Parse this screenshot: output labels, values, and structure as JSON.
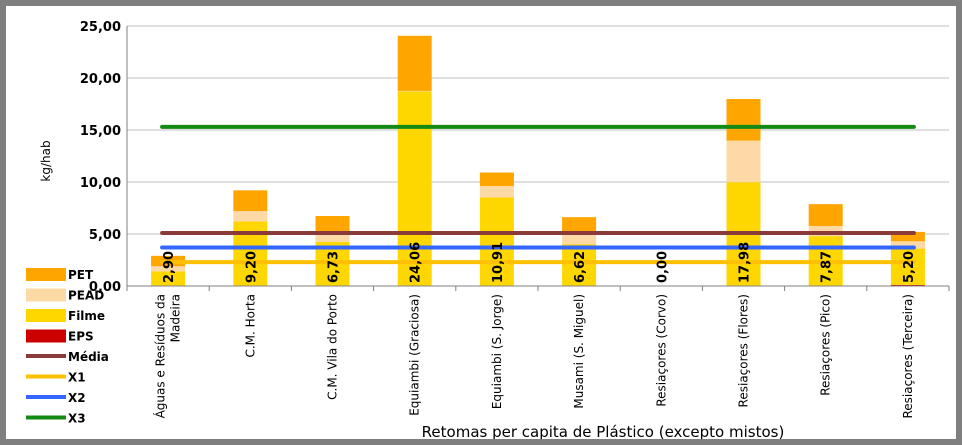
{
  "chart_data": {
    "type": "bar",
    "stacked": true,
    "title": "",
    "xlabel": "Retomas per capita de Plástico  (excepto mistos)",
    "ylabel": "kg/hab",
    "ylim": [
      0,
      25
    ],
    "yticks": [
      "0,00",
      "5,00",
      "10,00",
      "15,00",
      "20,00",
      "25,00"
    ],
    "grid": true,
    "legend_position": "bottom-left",
    "categories": [
      "Águas e Resíduos da Madeira",
      "C.M. Horta",
      "C.M. Vila do Porto",
      "Equiambi (Graciosa)",
      "Equiambi (S. Jorge)",
      "Musami (S. Miguel)",
      "Resiaçores (Corvo)",
      "Resiaçores (Flores)",
      "Resiaçores (Pico)",
      "Resiaçores (Terceira)"
    ],
    "category_lines": [
      [
        "Águas e Resíduos da",
        "Madeira"
      ],
      [
        "C.M. Horta"
      ],
      [
        "C.M. Vila do Porto"
      ],
      [
        "Equiambi (Graciosa)"
      ],
      [
        "Equiambi (S. Jorge)"
      ],
      [
        "Musami (S. Miguel)"
      ],
      [
        "Resiaçores (Corvo)"
      ],
      [
        "Resiaçores (Flores)"
      ],
      [
        "Resiaçores (Pico)"
      ],
      [
        "Resiaçores (Terceira)"
      ]
    ],
    "totals": [
      "2,90",
      "9,20",
      "6,73",
      "24,06",
      "10,91",
      "6,62",
      "0,00",
      "17,98",
      "7,87",
      "5,20"
    ],
    "series": [
      {
        "name": "PET",
        "color": "#ffa500",
        "values": [
          1.0,
          2.0,
          1.5,
          5.3,
          1.3,
          1.6,
          0,
          4.0,
          2.1,
          0.9
        ]
      },
      {
        "name": "PEAD",
        "color": "#fdd9a5",
        "values": [
          0.5,
          1.0,
          1.0,
          0.05,
          1.1,
          1.0,
          0,
          4.0,
          0.97,
          0.7
        ]
      },
      {
        "name": "Filme",
        "color": "#ffd700",
        "values": [
          1.4,
          6.2,
          4.23,
          18.71,
          8.51,
          4.02,
          0,
          9.98,
          4.8,
          3.5
        ]
      },
      {
        "name": "EPS",
        "color": "#cc0000",
        "values": [
          0,
          0,
          0,
          0,
          0,
          0,
          0,
          0,
          0,
          0.1
        ]
      }
    ],
    "reference_lines": [
      {
        "name": "Média",
        "color": "#8b3a3a",
        "value": 5.1
      },
      {
        "name": "X1",
        "color": "#ffc000",
        "value": 2.3
      },
      {
        "name": "X2",
        "color": "#3366ff",
        "value": 3.7
      },
      {
        "name": "X3",
        "color": "#138a13",
        "value": 15.3
      }
    ]
  }
}
